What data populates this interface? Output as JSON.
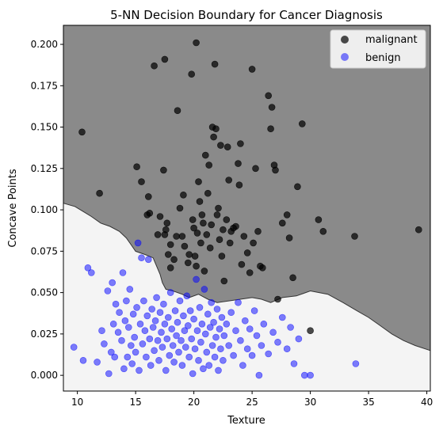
{
  "chart_data": {
    "type": "scatter",
    "title": "5-NN Decision Boundary for Cancer Diagnosis",
    "xlabel": "Texture",
    "ylabel": "Concave Points",
    "xlim": [
      8.8,
      40.3
    ],
    "ylim": [
      -0.0095,
      0.2115
    ],
    "xticks": [
      10,
      15,
      20,
      25,
      30,
      35,
      40
    ],
    "yticks": [
      0.0,
      0.025,
      0.05,
      0.075,
      0.1,
      0.125,
      0.15,
      0.175,
      0.2
    ],
    "ytick_labels": [
      "0.000",
      "0.025",
      "0.050",
      "0.075",
      "0.100",
      "0.125",
      "0.150",
      "0.175",
      "0.200"
    ],
    "grid": false,
    "legend_position": "top-right",
    "region_colors": {
      "malignant": "#8a8a8a",
      "benign": "#f4f4f4"
    },
    "boundary": [
      [
        8.8,
        0.104
      ],
      [
        9.8,
        0.102
      ],
      [
        10.5,
        0.099
      ],
      [
        11.2,
        0.096
      ],
      [
        12.0,
        0.092
      ],
      [
        12.8,
        0.09
      ],
      [
        13.6,
        0.087
      ],
      [
        14.2,
        0.083
      ],
      [
        14.6,
        0.079
      ],
      [
        15.0,
        0.075
      ],
      [
        15.8,
        0.073
      ],
      [
        16.5,
        0.071
      ],
      [
        16.8,
        0.066
      ],
      [
        17.1,
        0.061
      ],
      [
        17.3,
        0.056
      ],
      [
        17.6,
        0.052
      ],
      [
        18.2,
        0.051
      ],
      [
        19.0,
        0.049
      ],
      [
        19.6,
        0.047
      ],
      [
        20.4,
        0.049
      ],
      [
        21.2,
        0.046
      ],
      [
        22.0,
        0.044
      ],
      [
        23.0,
        0.045
      ],
      [
        24.0,
        0.046
      ],
      [
        25.0,
        0.047
      ],
      [
        25.8,
        0.046
      ],
      [
        26.6,
        0.044
      ],
      [
        27.6,
        0.047
      ],
      [
        28.8,
        0.048
      ],
      [
        30.0,
        0.051
      ],
      [
        31.5,
        0.049
      ],
      [
        32.8,
        0.044
      ],
      [
        34.0,
        0.039
      ],
      [
        35.0,
        0.035
      ],
      [
        36.0,
        0.03
      ],
      [
        37.0,
        0.025
      ],
      [
        38.0,
        0.021
      ],
      [
        39.0,
        0.018
      ],
      [
        40.3,
        0.015
      ]
    ],
    "series": [
      {
        "name": "malignant",
        "color": "#000000",
        "points": [
          [
            10.4,
            0.147
          ],
          [
            11.9,
            0.11
          ],
          [
            15.1,
            0.126
          ],
          [
            15.5,
            0.117
          ],
          [
            16.0,
            0.097
          ],
          [
            16.1,
            0.108
          ],
          [
            16.2,
            0.098
          ],
          [
            16.6,
            0.187
          ],
          [
            16.9,
            0.085
          ],
          [
            17.1,
            0.096
          ],
          [
            17.4,
            0.124
          ],
          [
            17.5,
            0.191
          ],
          [
            17.5,
            0.085
          ],
          [
            17.6,
            0.088
          ],
          [
            17.7,
            0.092
          ],
          [
            17.8,
            0.073
          ],
          [
            18.0,
            0.079
          ],
          [
            18.0,
            0.065
          ],
          [
            18.3,
            0.07
          ],
          [
            18.5,
            0.084
          ],
          [
            18.6,
            0.16
          ],
          [
            18.8,
            0.101
          ],
          [
            19.0,
            0.084
          ],
          [
            19.1,
            0.109
          ],
          [
            19.2,
            0.078
          ],
          [
            19.5,
            0.068
          ],
          [
            19.6,
            0.073
          ],
          [
            19.8,
            0.182
          ],
          [
            19.9,
            0.094
          ],
          [
            20.0,
            0.089
          ],
          [
            20.1,
            0.072
          ],
          [
            20.2,
            0.201
          ],
          [
            20.2,
            0.066
          ],
          [
            20.3,
            0.086
          ],
          [
            20.4,
            0.117
          ],
          [
            20.5,
            0.105
          ],
          [
            20.6,
            0.08
          ],
          [
            20.7,
            0.097
          ],
          [
            20.8,
            0.092
          ],
          [
            20.9,
            0.063
          ],
          [
            21.0,
            0.133
          ],
          [
            21.1,
            0.085
          ],
          [
            21.2,
            0.11
          ],
          [
            21.3,
            0.127
          ],
          [
            21.4,
            0.077
          ],
          [
            21.5,
            0.091
          ],
          [
            21.6,
            0.15
          ],
          [
            21.7,
            0.144
          ],
          [
            21.8,
            0.188
          ],
          [
            21.9,
            0.149
          ],
          [
            22.0,
            0.097
          ],
          [
            22.1,
            0.101
          ],
          [
            22.2,
            0.082
          ],
          [
            22.3,
            0.139
          ],
          [
            22.4,
            0.072
          ],
          [
            22.5,
            0.088
          ],
          [
            22.6,
            0.057
          ],
          [
            22.8,
            0.094
          ],
          [
            22.9,
            0.138
          ],
          [
            23.0,
            0.118
          ],
          [
            23.1,
            0.08
          ],
          [
            23.2,
            0.087
          ],
          [
            23.4,
            0.089
          ],
          [
            23.6,
            0.09
          ],
          [
            23.8,
            0.128
          ],
          [
            23.9,
            0.115
          ],
          [
            24.0,
            0.14
          ],
          [
            24.1,
            0.067
          ],
          [
            24.3,
            0.084
          ],
          [
            24.6,
            0.074
          ],
          [
            24.8,
            0.062
          ],
          [
            25.0,
            0.185
          ],
          [
            25.1,
            0.08
          ],
          [
            25.3,
            0.125
          ],
          [
            25.5,
            0.087
          ],
          [
            25.7,
            0.066
          ],
          [
            25.9,
            0.065
          ],
          [
            26.4,
            0.169
          ],
          [
            26.6,
            0.149
          ],
          [
            26.7,
            0.162
          ],
          [
            26.9,
            0.127
          ],
          [
            27.0,
            0.124
          ],
          [
            27.2,
            0.046
          ],
          [
            27.6,
            0.092
          ],
          [
            28.0,
            0.097
          ],
          [
            28.2,
            0.083
          ],
          [
            28.5,
            0.059
          ],
          [
            28.9,
            0.114
          ],
          [
            29.3,
            0.152
          ],
          [
            30.0,
            0.027
          ],
          [
            30.7,
            0.094
          ],
          [
            31.1,
            0.087
          ],
          [
            33.8,
            0.084
          ],
          [
            39.3,
            0.088
          ]
        ]
      },
      {
        "name": "benign",
        "color": "#0000ff",
        "points": [
          [
            9.7,
            0.017
          ],
          [
            10.5,
            0.009
          ],
          [
            10.9,
            0.065
          ],
          [
            11.2,
            0.062
          ],
          [
            11.7,
            0.008
          ],
          [
            12.1,
            0.027
          ],
          [
            12.3,
            0.019
          ],
          [
            12.6,
            0.051
          ],
          [
            12.7,
            0.001
          ],
          [
            12.9,
            0.014
          ],
          [
            13.0,
            0.056
          ],
          [
            13.1,
            0.031
          ],
          [
            13.2,
            0.011
          ],
          [
            13.3,
            0.043
          ],
          [
            13.5,
            0.026
          ],
          [
            13.6,
            0.038
          ],
          [
            13.8,
            0.021
          ],
          [
            13.9,
            0.062
          ],
          [
            14.0,
            0.004
          ],
          [
            14.1,
            0.033
          ],
          [
            14.2,
            0.045
          ],
          [
            14.3,
            0.011
          ],
          [
            14.4,
            0.029
          ],
          [
            14.5,
            0.052
          ],
          [
            14.6,
            0.018
          ],
          [
            14.7,
            0.007
          ],
          [
            14.8,
            0.037
          ],
          [
            14.9,
            0.023
          ],
          [
            15.0,
            0.014
          ],
          [
            15.1,
            0.041
          ],
          [
            15.2,
            0.08
          ],
          [
            15.3,
            0.003
          ],
          [
            15.4,
            0.031
          ],
          [
            15.5,
            0.071
          ],
          [
            15.6,
            0.019
          ],
          [
            15.7,
            0.045
          ],
          [
            15.8,
            0.027
          ],
          [
            15.9,
            0.011
          ],
          [
            16.0,
            0.036
          ],
          [
            16.1,
            0.07
          ],
          [
            16.2,
            0.022
          ],
          [
            16.3,
            0.006
          ],
          [
            16.4,
            0.04
          ],
          [
            16.5,
            0.029
          ],
          [
            16.6,
            0.015
          ],
          [
            16.7,
            0.033
          ],
          [
            16.8,
            0.047
          ],
          [
            16.9,
            0.021
          ],
          [
            17.0,
            0.009
          ],
          [
            17.1,
            0.038
          ],
          [
            17.2,
            0.026
          ],
          [
            17.3,
            0.017
          ],
          [
            17.4,
            0.043
          ],
          [
            17.5,
            0.031
          ],
          [
            17.6,
            0.003
          ],
          [
            17.7,
            0.022
          ],
          [
            17.8,
            0.035
          ],
          [
            17.9,
            0.012
          ],
          [
            18.0,
            0.05
          ],
          [
            18.1,
            0.028
          ],
          [
            18.2,
            0.018
          ],
          [
            18.3,
            0.008
          ],
          [
            18.4,
            0.039
          ],
          [
            18.5,
            0.024
          ],
          [
            18.6,
            0.032
          ],
          [
            18.7,
            0.014
          ],
          [
            18.8,
            0.045
          ],
          [
            18.9,
            0.021
          ],
          [
            19.0,
            0.006
          ],
          [
            19.1,
            0.036
          ],
          [
            19.2,
            0.027
          ],
          [
            19.3,
            0.017
          ],
          [
            19.4,
            0.048
          ],
          [
            19.5,
            0.03
          ],
          [
            19.6,
            0.011
          ],
          [
            19.7,
            0.039
          ],
          [
            19.8,
            0.022
          ],
          [
            19.9,
            0.001
          ],
          [
            20.0,
            0.034
          ],
          [
            20.1,
            0.016
          ],
          [
            20.2,
            0.058
          ],
          [
            20.3,
            0.027
          ],
          [
            20.4,
            0.009
          ],
          [
            20.5,
            0.041
          ],
          [
            20.6,
            0.02
          ],
          [
            20.7,
            0.031
          ],
          [
            20.8,
            0.004
          ],
          [
            20.9,
            0.052
          ],
          [
            21.0,
            0.025
          ],
          [
            21.1,
            0.014
          ],
          [
            21.2,
            0.037
          ],
          [
            21.3,
            0.006
          ],
          [
            21.4,
            0.029
          ],
          [
            21.5,
            0.044
          ],
          [
            21.6,
            0.018
          ],
          [
            21.7,
            0.032
          ],
          [
            21.8,
            0.011
          ],
          [
            21.9,
            0.023
          ],
          [
            22.0,
            0.04
          ],
          [
            22.1,
            0.003
          ],
          [
            22.2,
            0.028
          ],
          [
            22.3,
            0.016
          ],
          [
            22.4,
            0.035
          ],
          [
            22.5,
            0.009
          ],
          [
            22.6,
            0.024
          ],
          [
            22.8,
            0.031
          ],
          [
            23.0,
            0.018
          ],
          [
            23.2,
            0.038
          ],
          [
            23.4,
            0.012
          ],
          [
            23.6,
            0.027
          ],
          [
            23.8,
            0.044
          ],
          [
            24.0,
            0.021
          ],
          [
            24.2,
            0.006
          ],
          [
            24.4,
            0.033
          ],
          [
            24.6,
            0.016
          ],
          [
            24.8,
            0.028
          ],
          [
            25.0,
            0.012
          ],
          [
            25.2,
            0.039
          ],
          [
            25.4,
            0.024
          ],
          [
            25.6,
            0.0
          ],
          [
            25.8,
            0.018
          ],
          [
            26.0,
            0.031
          ],
          [
            26.4,
            0.013
          ],
          [
            26.8,
            0.026
          ],
          [
            27.2,
            0.02
          ],
          [
            27.6,
            0.035
          ],
          [
            28.0,
            0.016
          ],
          [
            28.3,
            0.029
          ],
          [
            28.6,
            0.007
          ],
          [
            29.0,
            0.022
          ],
          [
            29.5,
            0.0
          ],
          [
            30.0,
            0.0
          ],
          [
            33.9,
            0.007
          ]
        ]
      }
    ]
  }
}
